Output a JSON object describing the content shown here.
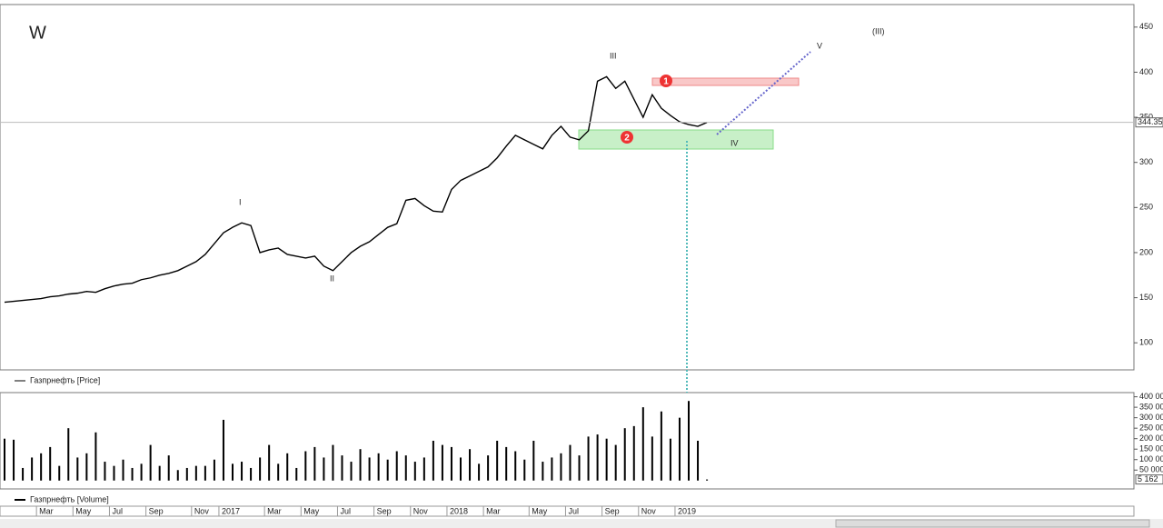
{
  "chart_data": [
    {
      "type": "line",
      "title": "W",
      "legend": "Газпрнефть [Price]",
      "color": "#000000",
      "values": [
        145,
        146,
        147,
        148,
        149,
        151,
        152,
        154,
        155,
        157,
        156,
        160,
        163,
        165,
        166,
        170,
        172,
        175,
        177,
        180,
        185,
        190,
        198,
        210,
        222,
        228,
        233,
        230,
        200,
        203,
        205,
        198,
        196,
        194,
        196,
        185,
        180,
        190,
        200,
        207,
        212,
        220,
        228,
        232,
        258,
        260,
        252,
        246,
        245,
        270,
        280,
        285,
        290,
        295,
        305,
        318,
        330,
        325,
        320,
        315,
        330,
        340,
        328,
        325,
        335,
        390,
        395,
        382,
        390,
        370,
        350,
        375,
        360,
        352,
        345,
        342,
        340,
        344.35
      ],
      "ylim": [
        70,
        475
      ],
      "yticks": [
        100,
        150,
        200,
        250,
        300,
        350,
        400,
        450
      ],
      "annotations": [
        "III",
        "I",
        "II",
        "IV",
        "V",
        "(III)",
        "1",
        "2"
      ]
    },
    {
      "type": "bar",
      "legend": "Газпрнефть [Volume]",
      "color": "#000000",
      "categories": [
        null,
        null,
        null,
        null,
        "Mar",
        null,
        null,
        null,
        "May",
        null,
        null,
        null,
        "Jul",
        null,
        null,
        null,
        "Sep",
        null,
        null,
        null,
        null,
        "Nov",
        null,
        null,
        "2017",
        null,
        null,
        null,
        null,
        "Mar",
        null,
        null,
        null,
        "May",
        null,
        null,
        null,
        "Jul",
        null,
        null,
        null,
        "Sep",
        null,
        null,
        null,
        "Nov",
        null,
        null,
        null,
        "2018",
        null,
        null,
        null,
        "Mar",
        null,
        null,
        null,
        null,
        "May",
        null,
        null,
        null,
        "Jul",
        null,
        null,
        null,
        "Sep",
        null,
        null,
        null,
        "Nov",
        null,
        null,
        null,
        "2019",
        null,
        null,
        null
      ],
      "values": [
        200000,
        195000,
        60000,
        110000,
        130000,
        160000,
        70000,
        250000,
        110000,
        130000,
        230000,
        90000,
        70000,
        100000,
        60000,
        80000,
        170000,
        70000,
        120000,
        50000,
        60000,
        70000,
        70000,
        100000,
        290000,
        80000,
        90000,
        60000,
        110000,
        170000,
        80000,
        130000,
        60000,
        140000,
        160000,
        110000,
        170000,
        120000,
        90000,
        150000,
        110000,
        130000,
        100000,
        140000,
        120000,
        90000,
        110000,
        190000,
        170000,
        160000,
        110000,
        150000,
        80000,
        120000,
        190000,
        160000,
        140000,
        100000,
        190000,
        90000,
        110000,
        130000,
        170000,
        120000,
        210000,
        220000,
        200000,
        170000,
        250000,
        260000,
        350000,
        210000,
        330000,
        200000,
        300000,
        380000,
        190000,
        5162
      ],
      "value_labels": [
        null,
        null,
        null,
        null,
        null,
        null,
        null,
        null,
        null,
        null,
        null,
        null,
        null,
        null,
        null,
        null,
        null,
        null,
        null,
        null,
        null,
        null,
        null,
        null,
        null,
        null,
        null,
        null,
        null,
        null,
        null,
        null,
        null,
        null,
        null,
        null,
        null,
        null,
        null,
        null,
        null,
        null,
        null,
        null,
        null,
        null,
        null,
        null,
        null,
        null,
        null,
        null,
        null,
        null,
        null,
        null,
        null,
        null,
        null,
        null,
        null,
        null,
        null,
        null,
        null,
        null,
        null,
        null,
        null,
        null,
        null,
        null,
        null,
        null,
        null,
        null,
        null,
        "5 162"
      ],
      "ylim": [
        -40000,
        420000
      ],
      "yticks": [
        {
          "value": 50000,
          "label": "50 000"
        },
        {
          "value": 100000,
          "label": "100 000"
        },
        {
          "value": 150000,
          "label": "150 000"
        },
        {
          "value": 200000,
          "label": "200 000"
        },
        {
          "value": 250000,
          "label": "250 000"
        },
        {
          "value": 300000,
          "label": "300 000"
        },
        {
          "value": 350000,
          "label": "350 000"
        },
        {
          "value": 400000,
          "label": "400 000"
        }
      ]
    }
  ]
}
